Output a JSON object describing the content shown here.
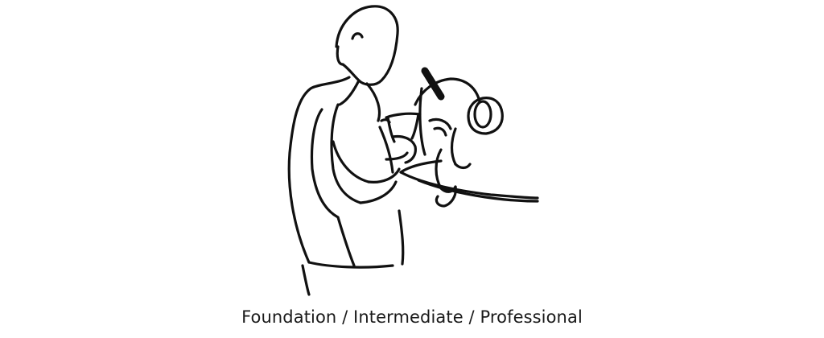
{
  "illustration": {
    "subject": "line-drawing-barista-at-espresso-machine",
    "stroke_color": "#111111",
    "background_color": "#ffffff"
  },
  "caption": {
    "text": "Foundation / Intermediate / Professional"
  }
}
